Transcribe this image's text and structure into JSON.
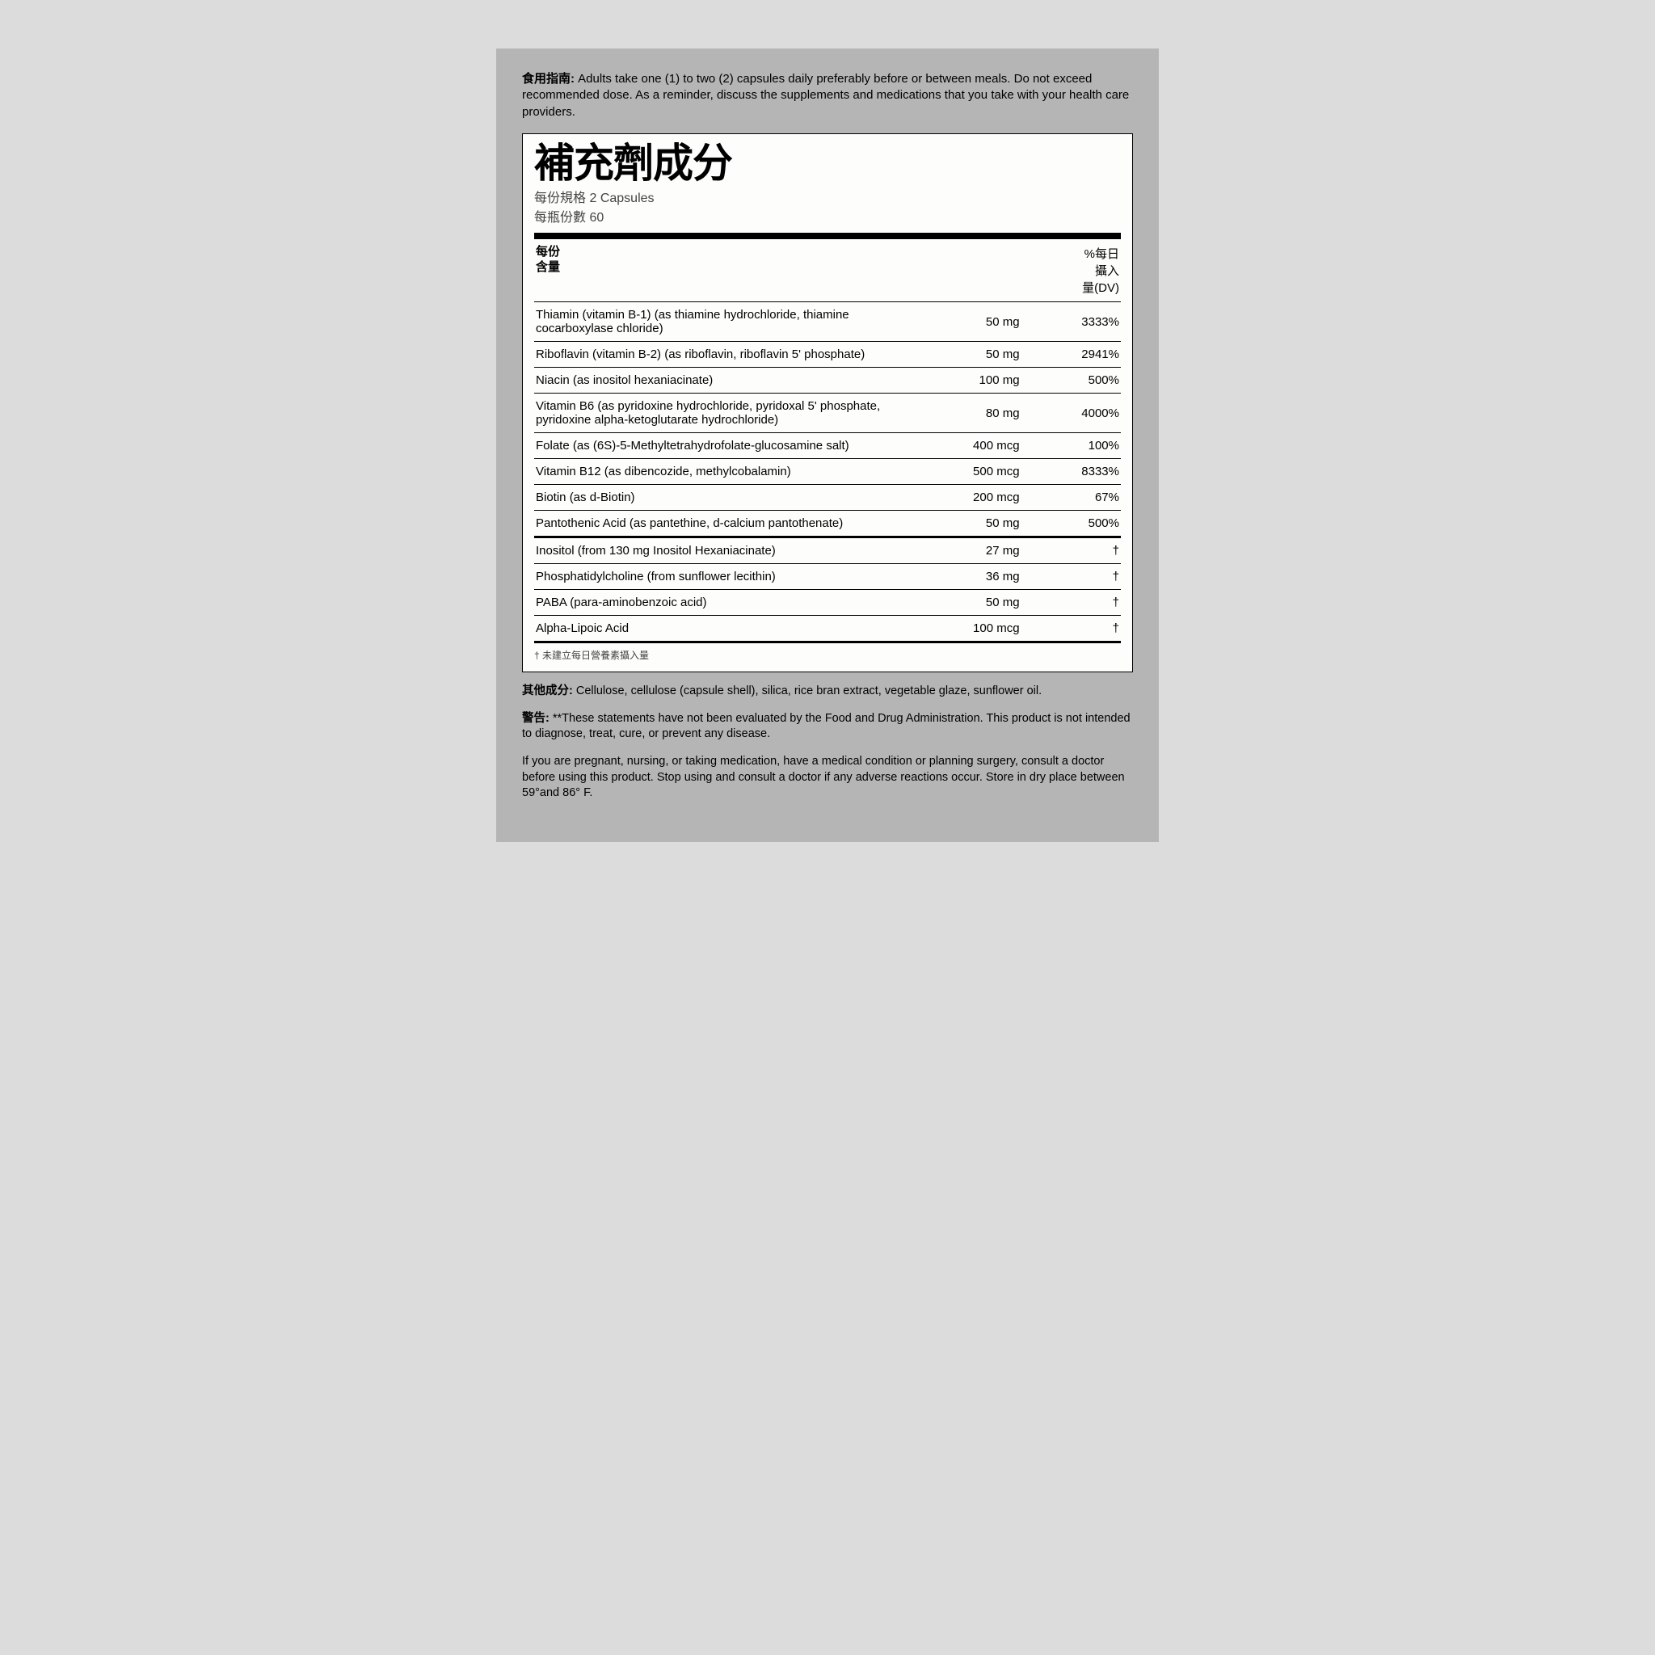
{
  "directions": {
    "label": "食用指南:",
    "text": "Adults take one (1) to two (2) capsules daily preferably before or between meals. Do not exceed recommended dose. As a reminder, discuss the supplements and medications that you take with your health care providers."
  },
  "facts": {
    "title": "補充劑成分",
    "serving_size_label": "每份規格",
    "serving_size_value": "2 Capsules",
    "servings_per_label": "每瓶份數",
    "servings_per_value": "60",
    "header_name": "每份\n含量",
    "header_dv": "%每日\n攝入\n量(DV)",
    "rows": [
      {
        "name": "Thiamin (vitamin B-1) (as thiamine hydrochloride, thiamine cocarboxylase chloride)",
        "amount": "50 mg",
        "dv": "3333%"
      },
      {
        "name": "Riboflavin (vitamin B-2) (as riboflavin, riboflavin 5' phosphate)",
        "amount": "50 mg",
        "dv": "2941%"
      },
      {
        "name": "Niacin (as inositol hexaniacinate)",
        "amount": "100 mg",
        "dv": "500%"
      },
      {
        "name": "Vitamin B6 (as pyridoxine hydrochloride, pyridoxal 5' phosphate, pyridoxine alpha-ketoglutarate hydrochloride)",
        "amount": "80 mg",
        "dv": "4000%"
      },
      {
        "name": "Folate (as (6S)-5-Methyltetrahydrofolate-glucosamine salt)",
        "amount": "400 mcg",
        "dv": "100%"
      },
      {
        "name": "Vitamin B12 (as dibencozide, methylcobalamin)",
        "amount": "500 mcg",
        "dv": "8333%"
      },
      {
        "name": "Biotin (as d-Biotin)",
        "amount": "200 mcg",
        "dv": "67%"
      },
      {
        "name": "Pantothenic Acid (as pantethine, d-calcium pantothenate)",
        "amount": "50 mg",
        "dv": "500%"
      },
      {
        "name": "Inositol (from 130 mg Inositol Hexaniacinate)",
        "amount": "27 mg",
        "dv": "†",
        "group_start": true
      },
      {
        "name": "Phosphatidylcholine (from sunflower lecithin)",
        "amount": "36 mg",
        "dv": "†"
      },
      {
        "name": "PABA (para-aminobenzoic acid)",
        "amount": "50 mg",
        "dv": "†"
      },
      {
        "name": "Alpha-Lipoic Acid",
        "amount": "100 mcg",
        "dv": "†"
      }
    ],
    "dagger_note": "† 未建立每日營養素攝入量"
  },
  "other": {
    "label": "其他成分:",
    "text": "Cellulose, cellulose (capsule shell), silica, rice bran extract, vegetable glaze, sunflower oil."
  },
  "warning": {
    "label": "警告:",
    "text": "**These statements have not been evaluated by the Food and Drug Administration. This product is not intended to diagnose, treat, cure, or prevent any disease."
  },
  "warning2": {
    "text": "If you are pregnant, nursing, or taking medication, have a medical condition or planning surgery, consult a doctor before using this product. Stop using and consult a doctor if any adverse reactions occur. Store in dry place between 59°and 86° F."
  }
}
